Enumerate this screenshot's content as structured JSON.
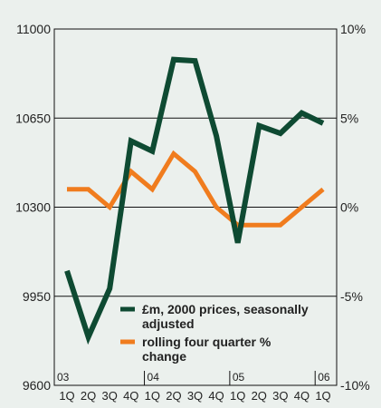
{
  "chart_data": {
    "type": "line",
    "categories": [
      "1Q",
      "2Q",
      "3Q",
      "4Q",
      "1Q",
      "2Q",
      "3Q",
      "4Q",
      "1Q",
      "2Q",
      "3Q",
      "4Q",
      "1Q"
    ],
    "years": [
      {
        "label": "03",
        "index": 0
      },
      {
        "label": "04",
        "index": 4
      },
      {
        "label": "05",
        "index": 8
      },
      {
        "label": "06",
        "index": 12
      }
    ],
    "left_axis": {
      "ticks": [
        9600,
        9950,
        10300,
        10650,
        11000
      ],
      "range": [
        9600,
        11000
      ]
    },
    "right_axis": {
      "ticks": [
        "-10%",
        "-5%",
        "0%",
        "5%",
        "10%"
      ],
      "values": [
        -10,
        -5,
        0,
        5,
        10
      ],
      "range": [
        -10,
        10
      ]
    },
    "grid": "horizontal",
    "series": [
      {
        "name": "£m, 2000 prices, seasonally",
        "name_line2": "adjusted",
        "axis": "left",
        "color": "#0e4a32",
        "values": [
          10050,
          9790,
          9980,
          10560,
          10520,
          10880,
          10875,
          10580,
          10160,
          10620,
          10590,
          10670,
          10630
        ]
      },
      {
        "name": "rolling four quarter %",
        "name_line2": "change",
        "axis": "right",
        "color": "#f07c1e",
        "values": [
          1,
          1,
          0,
          2,
          1,
          3,
          2,
          0,
          -1,
          -1,
          -1,
          0,
          1
        ]
      }
    ],
    "legend_position": "bottom-right"
  }
}
